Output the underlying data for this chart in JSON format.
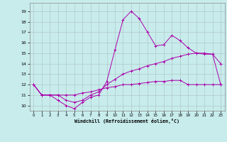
{
  "title": "",
  "xlabel": "Windchill (Refroidissement éolien,°C)",
  "ylabel": "",
  "bg_color": "#c8ecec",
  "line_color": "#aa00aa",
  "grid_color": "#b0c8c8",
  "x_ticks": [
    0,
    1,
    2,
    3,
    4,
    5,
    6,
    7,
    8,
    9,
    10,
    11,
    12,
    13,
    14,
    15,
    16,
    17,
    18,
    19,
    20,
    21,
    22,
    23
  ],
  "y_ticks": [
    10,
    11,
    12,
    13,
    14,
    15,
    16,
    17,
    18,
    19
  ],
  "ylim": [
    9.5,
    19.8
  ],
  "xlim": [
    -0.5,
    23.5
  ],
  "line1_x": [
    0,
    1,
    2,
    3,
    4,
    5,
    6,
    7,
    8,
    9,
    10,
    11,
    12,
    13,
    14,
    15,
    16,
    17,
    18,
    19,
    20,
    21,
    22,
    23
  ],
  "line1_y": [
    12.0,
    11.0,
    11.0,
    10.5,
    10.0,
    9.7,
    10.3,
    10.8,
    11.0,
    12.3,
    15.3,
    18.2,
    19.0,
    18.3,
    17.0,
    15.7,
    15.8,
    16.7,
    16.2,
    15.5,
    15.0,
    14.9,
    14.9,
    12.0
  ],
  "line2_x": [
    0,
    1,
    2,
    3,
    4,
    5,
    6,
    7,
    8,
    9,
    10,
    11,
    12,
    13,
    14,
    15,
    16,
    17,
    18,
    19,
    20,
    21,
    22,
    23
  ],
  "line2_y": [
    12.0,
    11.0,
    11.0,
    11.0,
    10.5,
    10.3,
    10.5,
    11.0,
    11.3,
    12.0,
    12.5,
    13.0,
    13.3,
    13.5,
    13.8,
    14.0,
    14.2,
    14.5,
    14.7,
    14.9,
    15.0,
    15.0,
    14.9,
    14.0
  ],
  "line3_x": [
    0,
    1,
    2,
    3,
    4,
    5,
    6,
    7,
    8,
    9,
    10,
    11,
    12,
    13,
    14,
    15,
    16,
    17,
    18,
    19,
    20,
    21,
    22,
    23
  ],
  "line3_y": [
    12.0,
    11.0,
    11.0,
    11.0,
    11.0,
    11.0,
    11.2,
    11.3,
    11.5,
    11.7,
    11.8,
    12.0,
    12.0,
    12.1,
    12.2,
    12.3,
    12.3,
    12.4,
    12.4,
    12.0,
    12.0,
    12.0,
    12.0,
    12.0
  ]
}
